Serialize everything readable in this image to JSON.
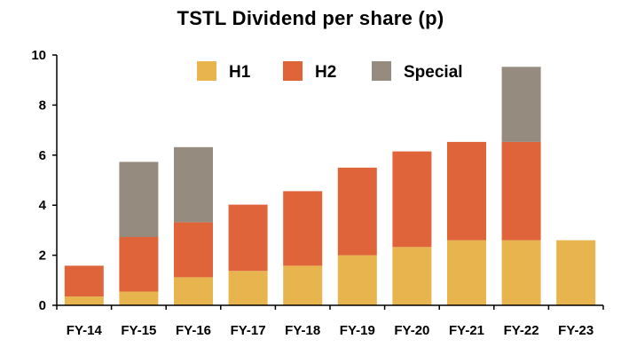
{
  "chart_data": {
    "type": "bar",
    "stacked": true,
    "title": "TSTL Dividend per share (p)",
    "categories": [
      "FY-14",
      "FY-15",
      "FY-16",
      "FY-17",
      "FY-18",
      "FY-19",
      "FY-20",
      "FY-21",
      "FY-22",
      "FY-23"
    ],
    "series": [
      {
        "name": "H1",
        "color": "#E8B44E",
        "values": [
          0.35,
          0.55,
          1.12,
          1.37,
          1.58,
          2.0,
          2.33,
          2.6,
          2.6,
          2.6
        ]
      },
      {
        "name": "H2",
        "color": "#E0643A",
        "values": [
          1.23,
          2.18,
          2.2,
          2.65,
          2.98,
          3.5,
          3.82,
          3.93,
          3.93,
          0
        ]
      },
      {
        "name": "Special",
        "color": "#958B7E",
        "values": [
          0,
          3.0,
          3.0,
          0,
          0,
          0,
          0,
          0,
          3.0,
          0
        ]
      }
    ],
    "ylim": [
      0,
      10
    ],
    "yticks": [
      0,
      2,
      4,
      6,
      8,
      10
    ],
    "grid": false,
    "legend_position": "top"
  }
}
